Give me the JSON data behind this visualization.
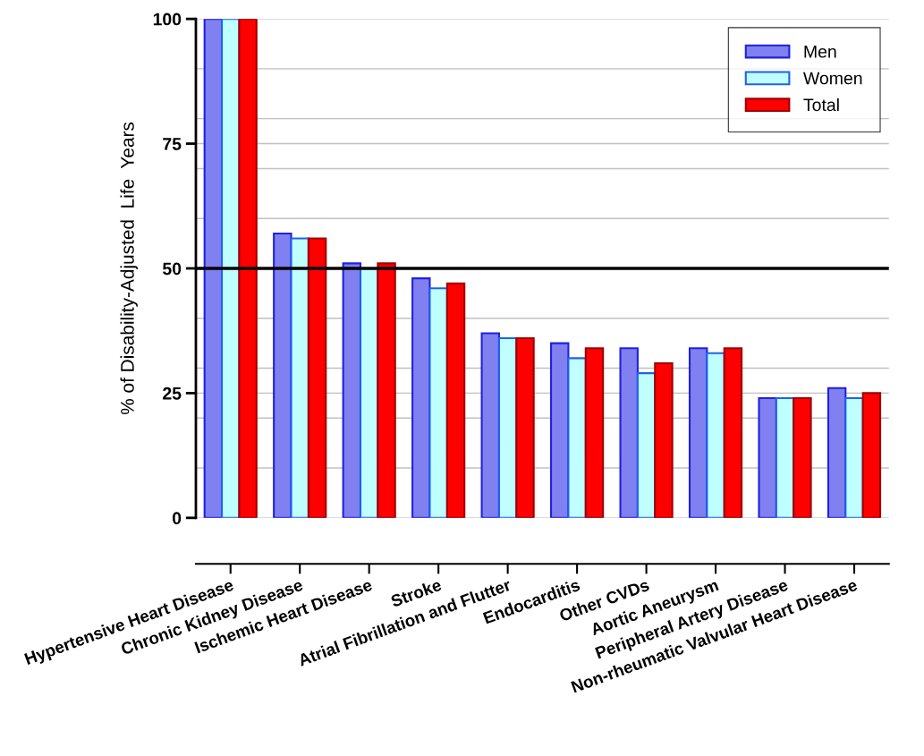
{
  "chart_data": {
    "type": "bar",
    "ylabel": "% of Disability-Adjusted  Life  Years",
    "categories": [
      "Hypertensive Heart Disease",
      "Chronic Kidney Disease",
      "Ischemic Heart Disease",
      "Stroke",
      "Atrial Fibrillation and Flutter",
      "Endocarditis",
      "Other CVDs",
      "Aortic Aneurysm",
      "Peripheral Artery Disease",
      "Non-rheumatic Valvular Heart Disease"
    ],
    "series": [
      {
        "name": "Men",
        "color": "#8080f0",
        "values": [
          100,
          57,
          51,
          48,
          37,
          35,
          34,
          34,
          24,
          26
        ]
      },
      {
        "name": "Women",
        "color": "#c0ffff",
        "values": [
          100,
          56,
          50,
          46,
          36,
          32,
          29,
          33,
          24,
          24
        ]
      },
      {
        "name": "Total",
        "color": "#ff0000",
        "values": [
          100,
          56,
          51,
          47,
          36,
          34,
          31,
          34,
          24,
          25
        ]
      }
    ],
    "ylim": [
      0,
      100
    ],
    "yticks": [
      0,
      {
        "value": 10,
        "label": null
      },
      {
        "value": 20,
        "label": null
      },
      25,
      {
        "value": 30,
        "label": null
      },
      {
        "value": 40,
        "label": null
      },
      50,
      {
        "value": 60,
        "label": null
      },
      {
        "value": 70,
        "label": null
      },
      75,
      {
        "value": 80,
        "label": null
      },
      {
        "value": 90,
        "label": null
      },
      100
    ],
    "grid": "y",
    "legend": "top right",
    "ref_lines": [
      {
        "axis": "y",
        "value": 50,
        "color": "#000000",
        "line_style": "solid"
      }
    ]
  }
}
